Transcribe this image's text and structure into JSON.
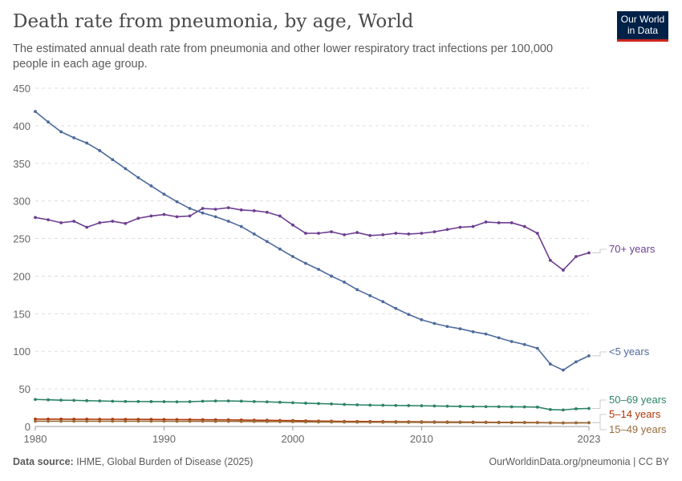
{
  "header": {
    "title": "Death rate from pneumonia, by age, World",
    "subtitle": "The estimated annual death rate from pneumonia and other lower respiratory tract infections per 100,000 people in each age group.",
    "logo": "Our World in Data"
  },
  "footer": {
    "source_label": "Data source:",
    "source": "IHME, Global Burden of Disease (2025)",
    "link": "OurWorldinData.org/pneumonia | CC BY"
  },
  "chart_data": {
    "type": "line",
    "title": "Death rate from pneumonia, by age, World",
    "xlim": [
      1980,
      2023
    ],
    "ylim": [
      0,
      450
    ],
    "x_ticks": [
      "1980",
      "1990",
      "2000",
      "2010",
      "2023"
    ],
    "y_ticks": [
      "0",
      "50",
      "100",
      "150",
      "200",
      "250",
      "300",
      "350",
      "400",
      "450"
    ],
    "grid": "horizontal dashed",
    "legend": "right, inline labels",
    "x": [
      1980,
      1981,
      1982,
      1983,
      1984,
      1985,
      1986,
      1987,
      1988,
      1989,
      1990,
      1991,
      1992,
      1993,
      1994,
      1995,
      1996,
      1997,
      1998,
      1999,
      2000,
      2001,
      2002,
      2003,
      2004,
      2005,
      2006,
      2007,
      2008,
      2009,
      2010,
      2011,
      2012,
      2013,
      2014,
      2015,
      2016,
      2017,
      2018,
      2019,
      2020,
      2021,
      2022,
      2023
    ],
    "series": [
      {
        "name": "70+ years",
        "color": "#6d3e91",
        "values": [
          278,
          275,
          271,
          273,
          265,
          271,
          273,
          270,
          277,
          280,
          282,
          279,
          280,
          290,
          289,
          291,
          288,
          287,
          285,
          280,
          268,
          257,
          257,
          259,
          255,
          258,
          254,
          255,
          257,
          256,
          257,
          259,
          262,
          265,
          266,
          272,
          271,
          271,
          266,
          257,
          221,
          208,
          226,
          231
        ]
      },
      {
        "name": "<5 years",
        "color": "#4c6a9c",
        "values": [
          419,
          405,
          392,
          384,
          377,
          367,
          355,
          343,
          331,
          320,
          309,
          299,
          290,
          284,
          279,
          273,
          266,
          256,
          246,
          236,
          226,
          217,
          209,
          200,
          192,
          182,
          174,
          166,
          157,
          149,
          142,
          137,
          133,
          130,
          126,
          123,
          118,
          113,
          109,
          104,
          83,
          75,
          86,
          94
        ]
      },
      {
        "name": "50–69 years",
        "color": "#2c8465",
        "values": [
          36,
          35.5,
          35,
          34.8,
          34.3,
          34,
          33.6,
          33.3,
          33.2,
          33.1,
          33,
          32.8,
          33,
          33.6,
          34,
          34,
          33.7,
          33.2,
          32.8,
          32.2,
          31.6,
          31,
          30.5,
          30,
          29.3,
          28.8,
          28.4,
          28.2,
          28,
          27.8,
          27.6,
          27.3,
          27,
          26.7,
          26.5,
          26.4,
          26.3,
          26.2,
          26.1,
          25.8,
          22.5,
          22,
          23.5,
          24
        ]
      },
      {
        "name": "5–14 years",
        "color": "#b13507",
        "values": [
          9.8,
          9.8,
          9.8,
          9.7,
          9.7,
          9.6,
          9.6,
          9.5,
          9.5,
          9.4,
          9.3,
          9.2,
          9.1,
          9,
          8.9,
          8.8,
          8.6,
          8.4,
          8.2,
          8,
          7.8,
          7.5,
          7.2,
          7,
          6.8,
          6.7,
          6.6,
          6.5,
          6.4,
          6.3,
          6.2,
          6.1,
          6,
          5.9,
          5.8,
          5.7,
          5.6,
          5.5,
          5.4,
          5.3,
          5,
          4.8,
          4.9,
          5
        ]
      },
      {
        "name": "15–49 years",
        "color": "#986d39",
        "values": [
          7,
          7,
          7,
          7,
          7,
          7,
          7,
          7,
          7,
          7,
          7,
          6.9,
          6.9,
          6.9,
          6.8,
          6.8,
          6.7,
          6.6,
          6.5,
          6.4,
          6.3,
          6.1,
          6,
          5.9,
          5.8,
          5.7,
          5.6,
          5.6,
          5.5,
          5.5,
          5.4,
          5.4,
          5.3,
          5.3,
          5.2,
          5.2,
          5.1,
          5.1,
          5,
          5,
          4.8,
          4.7,
          4.9,
          5
        ]
      }
    ]
  }
}
